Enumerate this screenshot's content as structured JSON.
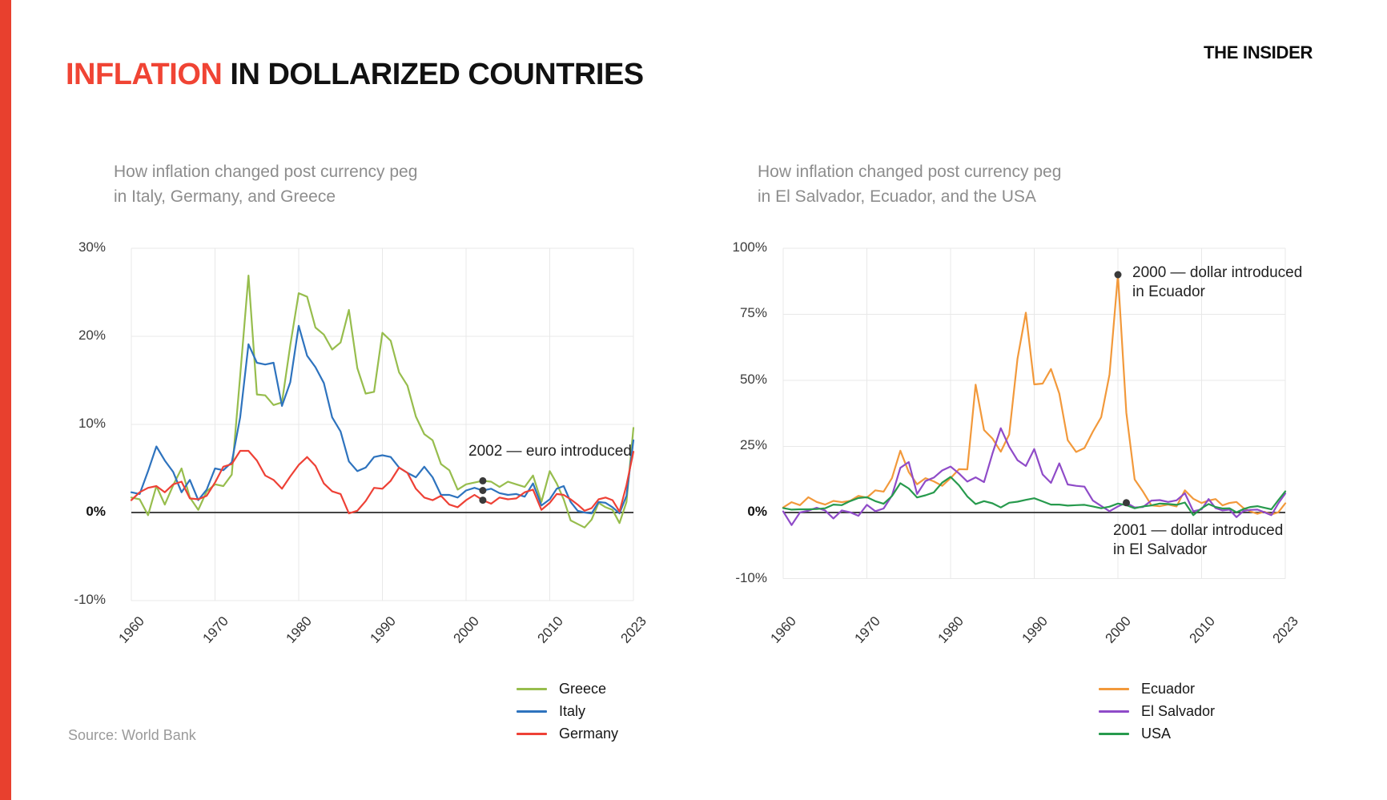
{
  "page": {
    "background": "#ffffff",
    "accent_bar_color": "#e8402e"
  },
  "header": {
    "title_accent": "INFLATION",
    "title_rest": " IN DOLLARIZED COUNTRIES",
    "title_accent_color": "#f04434",
    "logo_text": "THE INSIDER"
  },
  "source_text": "Source: World Bank",
  "chart_data": [
    {
      "type": "line",
      "subtitle_line1": "How inflation changed post currency peg",
      "subtitle_line2": "in Italy, Germany, and Greece",
      "x_tick_labels": [
        "1960",
        "1970",
        "1980",
        "1990",
        "2000",
        "2010",
        "2023"
      ],
      "y_tick_labels": [
        "30%",
        "20%",
        "10%",
        "0%",
        "-10%"
      ],
      "y_ticks": [
        30,
        20,
        10,
        0,
        -10
      ],
      "ylim": [
        -10,
        30
      ],
      "grid": true,
      "legend_position": "bottom-right",
      "year_start": 1960,
      "year_end": 2022,
      "series": [
        {
          "name": "Greece",
          "color": "#97bd4d",
          "values": [
            1.7,
            1.5,
            -0.3,
            3.0,
            0.9,
            3.1,
            5.0,
            1.7,
            0.3,
            2.4,
            3.2,
            3.0,
            4.3,
            15.5,
            26.9,
            13.4,
            13.3,
            12.2,
            12.5,
            19.0,
            24.9,
            24.5,
            21.0,
            20.2,
            18.5,
            19.3,
            23.0,
            16.4,
            13.5,
            13.7,
            20.4,
            19.5,
            15.9,
            14.4,
            10.9,
            8.9,
            8.2,
            5.5,
            4.8,
            2.6,
            3.2,
            3.4,
            3.6,
            3.5,
            2.9,
            3.5,
            3.2,
            2.9,
            4.2,
            1.2,
            4.7,
            3.3,
            1.5,
            -0.9,
            -1.3,
            -1.7,
            -0.8,
            1.1,
            0.6,
            0.3,
            -1.2,
            1.2,
            9.6
          ]
        },
        {
          "name": "Italy",
          "color": "#2e73be",
          "values": [
            2.3,
            2.1,
            4.7,
            7.5,
            5.9,
            4.6,
            2.3,
            3.7,
            1.4,
            2.6,
            5.0,
            4.8,
            5.7,
            10.8,
            19.1,
            17.0,
            16.8,
            17.0,
            12.1,
            14.8,
            21.2,
            17.8,
            16.5,
            14.7,
            10.8,
            9.2,
            5.8,
            4.7,
            5.1,
            6.3,
            6.5,
            6.3,
            5.1,
            4.5,
            4.0,
            5.2,
            4.0,
            2.0,
            2.0,
            1.7,
            2.5,
            2.8,
            2.5,
            2.7,
            2.2,
            2.0,
            2.1,
            1.8,
            3.3,
            0.8,
            1.5,
            2.7,
            3.0,
            1.2,
            0.2,
            0.0,
            -0.1,
            1.2,
            1.1,
            0.6,
            -0.1,
            1.9,
            8.2
          ]
        },
        {
          "name": "Germany",
          "color": "#ee4136",
          "values": [
            1.4,
            2.3,
            2.8,
            3.0,
            2.3,
            3.2,
            3.5,
            1.6,
            1.5,
            1.9,
            3.4,
            5.2,
            5.5,
            7.0,
            7.0,
            5.9,
            4.2,
            3.7,
            2.7,
            4.1,
            5.4,
            6.3,
            5.3,
            3.3,
            2.4,
            2.1,
            -0.1,
            0.2,
            1.3,
            2.8,
            2.7,
            3.6,
            5.1,
            4.5,
            2.7,
            1.7,
            1.4,
            1.9,
            0.9,
            0.6,
            1.4,
            2.0,
            1.4,
            1.0,
            1.7,
            1.5,
            1.6,
            2.3,
            2.6,
            0.3,
            1.1,
            2.1,
            2.0,
            1.5,
            0.9,
            0.2,
            0.5,
            1.5,
            1.7,
            1.4,
            0.1,
            3.1,
            6.9
          ]
        }
      ],
      "annotations": [
        {
          "label_line1": "2002 — euro introduced",
          "label_line2": "",
          "dot_year": 2002,
          "dot_series": [
            "Greece",
            "Italy",
            "Germany"
          ]
        }
      ]
    },
    {
      "type": "line",
      "subtitle_line1": "How inflation changed post currency peg",
      "subtitle_line2": "in El Salvador, Ecuador, and the USA",
      "x_tick_labels": [
        "1960",
        "1970",
        "1980",
        "1990",
        "2000",
        "2010",
        "2023"
      ],
      "y_tick_labels": [
        "100%",
        "75%",
        "50%",
        "25%",
        "0%",
        "-10%"
      ],
      "y_ticks": [
        100,
        75,
        50,
        25,
        0,
        -10
      ],
      "ylim": [
        -10,
        100
      ],
      "grid": true,
      "legend_position": "bottom-right",
      "year_start": 1960,
      "year_end": 2022,
      "series": [
        {
          "name": "Ecuador",
          "color": "#f2993b",
          "values": [
            1.9,
            3.9,
            2.8,
            5.8,
            4.0,
            3.0,
            4.4,
            3.9,
            4.4,
            6.3,
            5.6,
            8.4,
            7.9,
            13.0,
            23.4,
            15.3,
            10.7,
            13.0,
            11.8,
            10.1,
            13.0,
            16.4,
            16.3,
            48.4,
            31.2,
            28.0,
            23.0,
            29.5,
            58.2,
            75.6,
            48.5,
            48.8,
            54.3,
            45.0,
            27.4,
            22.9,
            24.4,
            30.6,
            36.1,
            52.2,
            90.0,
            37.7,
            12.5,
            7.9,
            2.7,
            2.4,
            3.0,
            2.3,
            8.4,
            5.2,
            3.6,
            4.5,
            5.1,
            2.7,
            3.6,
            4.0,
            1.7,
            0.4,
            -0.2,
            0.3,
            -0.3,
            0.1,
            3.5
          ]
        },
        {
          "name": "El Salvador",
          "color": "#8f4bc8",
          "values": [
            0.4,
            -1.9,
            0.0,
            0.7,
            1.8,
            0.8,
            -0.9,
            0.8,
            0.1,
            -0.5,
            2.9,
            0.5,
            1.5,
            6.4,
            16.9,
            19.1,
            7.0,
            11.9,
            13.2,
            15.9,
            17.4,
            14.8,
            11.7,
            13.3,
            11.5,
            22.3,
            31.9,
            24.9,
            19.8,
            17.6,
            24.0,
            14.4,
            11.2,
            18.6,
            10.6,
            10.1,
            9.8,
            4.5,
            2.5,
            0.5,
            2.3,
            3.7,
            1.9,
            2.1,
            4.5,
            4.7,
            4.0,
            4.6,
            7.3,
            0.5,
            1.2,
            5.1,
            1.7,
            0.8,
            1.1,
            -0.7,
            0.6,
            1.0,
            1.1,
            0.1,
            -0.4,
            3.5,
            7.2
          ]
        },
        {
          "name": "USA",
          "color": "#279a4d",
          "values": [
            1.7,
            1.1,
            1.2,
            1.2,
            1.3,
            1.6,
            3.0,
            2.8,
            4.3,
            5.5,
            5.8,
            4.3,
            3.3,
            6.2,
            11.1,
            9.1,
            5.7,
            6.5,
            7.6,
            11.3,
            13.5,
            10.3,
            6.1,
            3.2,
            4.3,
            3.5,
            1.9,
            3.7,
            4.1,
            4.8,
            5.4,
            4.2,
            3.0,
            3.0,
            2.6,
            2.8,
            2.9,
            2.3,
            1.6,
            2.2,
            3.4,
            2.8,
            1.6,
            2.3,
            2.7,
            3.4,
            3.2,
            2.9,
            3.8,
            -0.4,
            1.6,
            3.2,
            2.1,
            1.5,
            1.6,
            0.1,
            1.3,
            2.1,
            2.4,
            1.8,
            1.2,
            4.7,
            8.0
          ]
        }
      ],
      "annotations": [
        {
          "label_line1": "2000 — dollar introduced",
          "label_line2": "in Ecuador",
          "dot_year": 2000,
          "dot_series": [
            "Ecuador"
          ]
        },
        {
          "label_line1": "2001 — dollar introduced",
          "label_line2": "in El Salvador",
          "dot_year": 2001,
          "dot_series": [
            "El Salvador"
          ]
        }
      ]
    }
  ]
}
